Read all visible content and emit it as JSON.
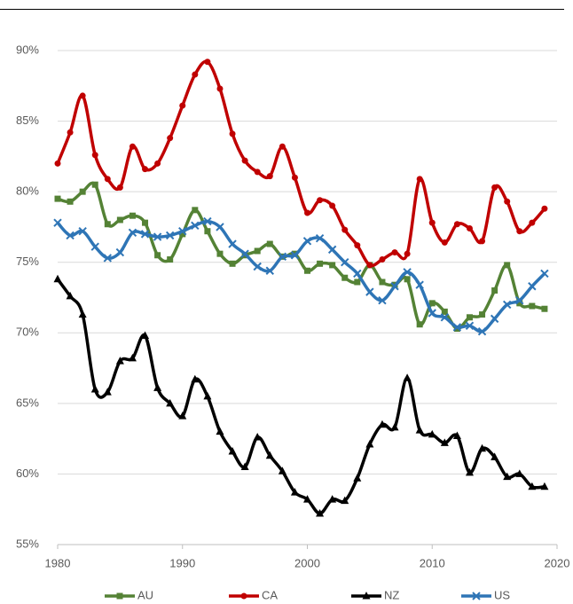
{
  "chart_data": {
    "type": "line",
    "x": [
      1980,
      1981,
      1982,
      1983,
      1984,
      1985,
      1986,
      1987,
      1988,
      1989,
      1990,
      1991,
      1992,
      1993,
      1994,
      1995,
      1996,
      1997,
      1998,
      1999,
      2000,
      2001,
      2002,
      2003,
      2004,
      2005,
      2006,
      2007,
      2008,
      2009,
      2010,
      2011,
      2012,
      2013,
      2014,
      2015,
      2016,
      2017,
      2018,
      2019
    ],
    "series": [
      {
        "name": "AU",
        "color": "#548235",
        "marker": "square",
        "values": [
          79.5,
          79.3,
          80.0,
          80.5,
          77.7,
          78.0,
          78.3,
          77.8,
          75.5,
          75.2,
          77.0,
          78.7,
          77.2,
          75.6,
          74.9,
          75.5,
          75.8,
          76.3,
          75.4,
          75.6,
          74.4,
          74.9,
          74.8,
          73.9,
          73.6,
          74.8,
          73.6,
          73.4,
          73.8,
          70.6,
          72.1,
          71.5,
          70.3,
          71.1,
          71.3,
          73.0,
          74.8,
          72.1,
          71.9,
          71.7
        ]
      },
      {
        "name": "CA",
        "color": "#c00000",
        "marker": "circle",
        "values": [
          82.0,
          84.2,
          86.8,
          82.6,
          80.9,
          80.3,
          83.2,
          81.6,
          82.0,
          83.8,
          86.1,
          88.3,
          89.2,
          87.3,
          84.1,
          82.2,
          81.4,
          81.1,
          83.2,
          81.0,
          78.5,
          79.4,
          79.0,
          77.3,
          76.2,
          74.8,
          75.2,
          75.7,
          75.6,
          80.9,
          77.8,
          76.4,
          77.7,
          77.4,
          76.5,
          80.3,
          79.3,
          77.2,
          77.8,
          78.8
        ]
      },
      {
        "name": "NZ",
        "color": "#000000",
        "marker": "triangle",
        "values": [
          73.8,
          72.6,
          71.3,
          66.0,
          65.8,
          68.0,
          68.2,
          69.8,
          66.1,
          65.0,
          64.1,
          66.7,
          65.5,
          63.0,
          61.6,
          60.5,
          62.6,
          61.3,
          60.2,
          58.7,
          58.2,
          57.2,
          58.2,
          58.1,
          59.7,
          62.1,
          63.5,
          63.3,
          66.8,
          63.1,
          62.8,
          62.2,
          62.7,
          60.1,
          61.8,
          61.2,
          59.8,
          60.0,
          59.1,
          59.1
        ]
      },
      {
        "name": "US",
        "color": "#2e75b6",
        "marker": "x",
        "values": [
          77.8,
          76.9,
          77.2,
          76.1,
          75.3,
          75.7,
          77.1,
          77.0,
          76.8,
          76.9,
          77.2,
          77.6,
          77.9,
          77.5,
          76.3,
          75.6,
          74.7,
          74.4,
          75.4,
          75.5,
          76.5,
          76.7,
          75.9,
          75.0,
          74.2,
          72.9,
          72.3,
          73.3,
          74.3,
          73.4,
          71.4,
          71.1,
          70.4,
          70.5,
          70.1,
          71.0,
          72.0,
          72.3,
          73.3,
          74.2
        ]
      }
    ],
    "xlim": [
      1980,
      2020
    ],
    "xticks": [
      1980,
      1990,
      2000,
      2010,
      2020
    ],
    "ylim": [
      55,
      90
    ],
    "yticks": [
      {
        "value": 55,
        "label": "55%"
      },
      {
        "value": 60,
        "label": "60%"
      },
      {
        "value": 65,
        "label": "65%"
      },
      {
        "value": 70,
        "label": "70%"
      },
      {
        "value": 75,
        "label": "75%"
      },
      {
        "value": 80,
        "label": "80%"
      },
      {
        "value": 85,
        "label": "85%"
      },
      {
        "value": 90,
        "label": "90%"
      }
    ],
    "grid": true,
    "smooth": true,
    "legend": "bottom"
  }
}
